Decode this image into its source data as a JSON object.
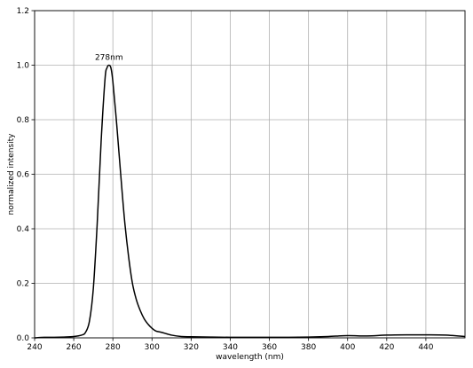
{
  "chart_data": {
    "type": "line",
    "xlabel": "wavelength (nm)",
    "ylabel": "normalized intensity",
    "xlim": [
      240,
      460
    ],
    "ylim": [
      0,
      1.2
    ],
    "xticks": [
      240,
      260,
      280,
      300,
      320,
      340,
      360,
      380,
      400,
      420,
      440
    ],
    "yticks": [
      0.0,
      0.2,
      0.4,
      0.6,
      0.8,
      1.0,
      1.2
    ],
    "grid": true,
    "annotation": {
      "text": "278nm",
      "x": 278,
      "y": 1.0
    },
    "series": [
      {
        "color": "#000000",
        "x": [
          240,
          245,
          250,
          255,
          260,
          264,
          266,
          268,
          270,
          272,
          274,
          276,
          277,
          278,
          279,
          280,
          282,
          284,
          286,
          288,
          290,
          292,
          294,
          296,
          298,
          300,
          302,
          305,
          310,
          315,
          320,
          330,
          340,
          350,
          360,
          370,
          380,
          390,
          400,
          410,
          420,
          430,
          440,
          450,
          460
        ],
        "y": [
          0.0,
          0.002,
          0.002,
          0.003,
          0.005,
          0.01,
          0.02,
          0.06,
          0.18,
          0.42,
          0.72,
          0.95,
          0.99,
          1.0,
          0.99,
          0.94,
          0.78,
          0.6,
          0.43,
          0.3,
          0.2,
          0.14,
          0.1,
          0.07,
          0.05,
          0.035,
          0.025,
          0.02,
          0.01,
          0.005,
          0.004,
          0.003,
          0.002,
          0.002,
          0.002,
          0.002,
          0.003,
          0.005,
          0.008,
          0.007,
          0.01,
          0.011,
          0.011,
          0.01,
          0.005
        ]
      }
    ]
  }
}
